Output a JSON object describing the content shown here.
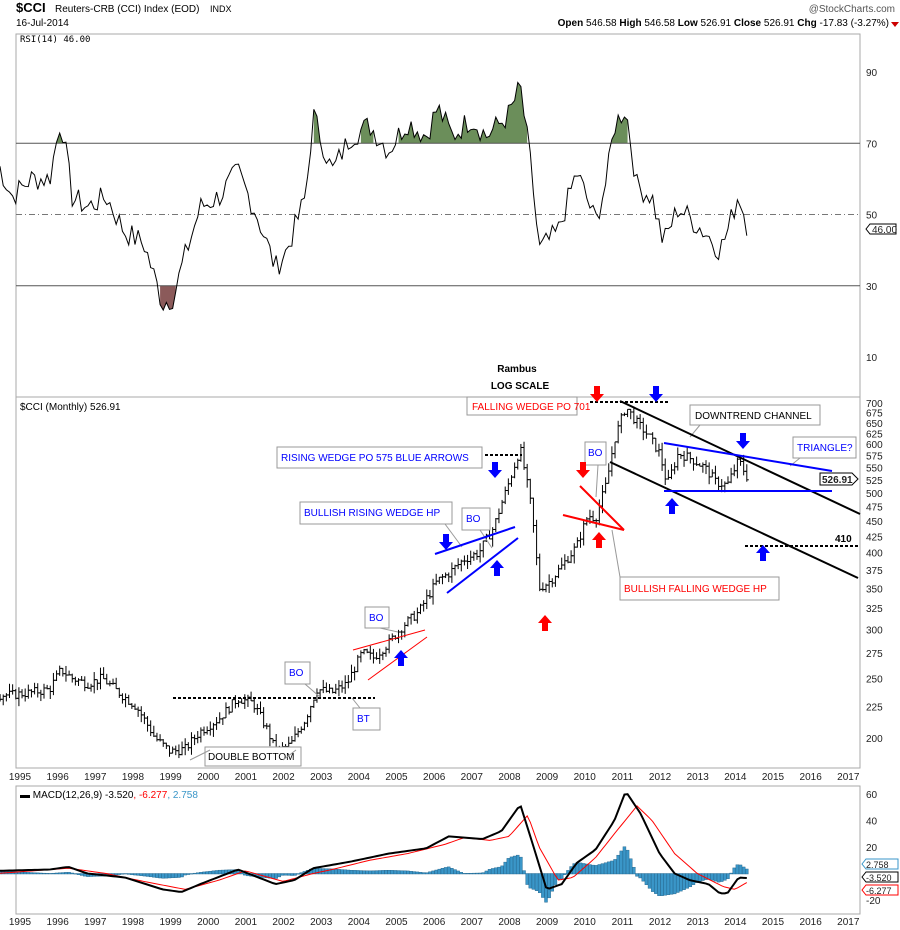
{
  "header": {
    "symbol": "$CCI",
    "name": "Reuters-CRB (CCI) Index (EOD)",
    "exchange": "INDX",
    "date": "16-Jul-2014",
    "copyright": "@StockCharts.com",
    "open_label": "Open",
    "open": "546.58",
    "high_label": "High",
    "high": "546.58",
    "low_label": "Low",
    "low": "526.91",
    "close_label": "Close",
    "close": "526.91",
    "chg_label": "Chg",
    "chg": "-17.83 (-3.27%)"
  },
  "colors": {
    "up_arrow_blue": "#0000ff",
    "red": "#ff0000",
    "rsi_over": "#6b8e5a",
    "rsi_under": "#8b5a5a",
    "hist": "#3a96c8",
    "signal": "#ff0000"
  },
  "chart_data": [
    {
      "type": "line",
      "title": "RSI(14) 46.00",
      "current_label": "46.00",
      "ylim": [
        0,
        100
      ],
      "ticks": [
        "90",
        "70",
        "50",
        "30",
        "10"
      ],
      "tick_values": [
        90,
        70,
        50,
        30,
        10
      ],
      "levels": [
        70,
        50,
        30
      ],
      "x": [
        1994.6,
        1995.0,
        1995.5,
        1996.0,
        1996.3,
        1996.6,
        1997.0,
        1997.5,
        1998.0,
        1998.5,
        1999.0,
        1999.3,
        1999.5,
        2000.0,
        2000.5,
        2001.0,
        2001.5,
        2002.0,
        2002.3,
        2002.8,
        2003.0,
        2003.5,
        2004.0,
        2004.5,
        2005.0,
        2005.5,
        2006.0,
        2006.3,
        2006.7,
        2007.2,
        2007.6,
        2008.2,
        2008.5,
        2008.8,
        2009.0,
        2009.5,
        2010.0,
        2010.5,
        2010.8,
        2011.0,
        2011.3,
        2011.6,
        2012.0,
        2012.3,
        2012.7,
        2013.1,
        2013.5,
        2013.8,
        2014.0,
        2014.3,
        2014.55
      ],
      "y": [
        65,
        55,
        60,
        60,
        77,
        55,
        52,
        55,
        45,
        42,
        25,
        27,
        35,
        52,
        55,
        62,
        50,
        35,
        40,
        55,
        78,
        62,
        72,
        75,
        68,
        76,
        72,
        80,
        72,
        77,
        72,
        78,
        86,
        62,
        40,
        45,
        62,
        48,
        60,
        75,
        80,
        58,
        55,
        42,
        52,
        48,
        44,
        40,
        45,
        56,
        46
      ]
    },
    {
      "type": "ohlc",
      "title": "$CCI (Monthly) 526.91",
      "scale": "log",
      "current_label": "526.91",
      "ylim": [
        180,
        710
      ],
      "ticks": [
        "700",
        "675",
        "650",
        "625",
        "600",
        "575",
        "550",
        "525",
        "500",
        "475",
        "450",
        "425",
        "400",
        "375",
        "350",
        "325",
        "300",
        "275",
        "250",
        "225",
        "200"
      ],
      "tick_values": [
        700,
        675,
        650,
        625,
        600,
        575,
        550,
        525,
        500,
        475,
        450,
        425,
        400,
        375,
        350,
        325,
        300,
        275,
        250,
        225,
        200
      ],
      "x": [
        1994.6,
        1995.0,
        1995.5,
        1996.0,
        1996.3,
        1996.6,
        1997.0,
        1997.4,
        1997.8,
        1998.3,
        1998.8,
        1999.2,
        1999.6,
        2000.0,
        2000.5,
        2001.0,
        2001.4,
        2001.8,
        2002.0,
        2002.4,
        2002.8,
        2003.1,
        2003.5,
        2003.9,
        2004.3,
        2004.6,
        2005.0,
        2005.4,
        2005.8,
        2006.3,
        2006.6,
        2007.0,
        2007.4,
        2007.8,
        2008.2,
        2008.5,
        2008.8,
        2009.0,
        2009.3,
        2009.6,
        2010.0,
        2010.3,
        2010.5,
        2010.8,
        2011.0,
        2011.3,
        2011.6,
        2011.9,
        2012.2,
        2012.4,
        2012.7,
        2013.0,
        2013.4,
        2013.7,
        2014.0,
        2014.3,
        2014.55
      ],
      "close": [
        235,
        235,
        237,
        240,
        258,
        250,
        245,
        250,
        238,
        225,
        200,
        190,
        192,
        205,
        215,
        232,
        228,
        205,
        190,
        195,
        215,
        240,
        237,
        245,
        275,
        270,
        285,
        305,
        320,
        360,
        370,
        390,
        400,
        440,
        520,
        590,
        470,
        350,
        360,
        380,
        410,
        460,
        455,
        520,
        610,
        690,
        650,
        620,
        580,
        515,
        580,
        570,
        550,
        520,
        515,
        565,
        527
      ],
      "annotations": {
        "rambus": "Rambus",
        "log_scale": "LOG SCALE",
        "falling_wedge_po": "FALLING WEDGE PO 701",
        "downtrend_channel": "DOWNTREND CHANNEL",
        "rising_wedge_po": "RISING WEDGE PO 575 BLUE ARROWS",
        "triangle": "TRIANGLE?",
        "bullish_rising_wedge": "BULLISH RISING WEDGE HP",
        "bo": "BO",
        "bt": "BT",
        "bullish_falling_wedge": "BULLISH FALLING WEDGE HP",
        "target_410": "410",
        "double_bottom": "DOUBLE BOTTOM"
      }
    },
    {
      "type": "line",
      "title": "MACD(12,26,9)",
      "macd_value": "-3.520",
      "signal_value": "-6.277",
      "hist_value": "2.758",
      "ylim": [
        -28,
        66
      ],
      "ticks": [
        "60",
        "40",
        "20",
        "-20"
      ],
      "tick_values": [
        60,
        40,
        20,
        -20
      ],
      "macd": {
        "x": [
          1994.6,
          1996,
          1996.5,
          1997,
          1998,
          1999,
          1999.5,
          2000,
          2001,
          2002,
          2002.5,
          2003,
          2004,
          2005,
          2006,
          2006.6,
          2007.5,
          2008.0,
          2008.5,
          2008.8,
          2009.2,
          2009.6,
          2010,
          2010.5,
          2011,
          2011.3,
          2011.7,
          2012.2,
          2012.6,
          2013,
          2013.5,
          2013.8,
          2014.0,
          2014.3,
          2014.55
        ],
        "y": [
          2,
          3,
          5,
          0,
          -3,
          -12,
          -14,
          -8,
          3,
          -8,
          -5,
          4,
          9,
          15,
          19,
          28,
          26,
          32,
          52,
          25,
          -12,
          -8,
          8,
          18,
          40,
          62,
          45,
          15,
          0,
          -5,
          -8,
          -15,
          -15,
          -3,
          -3.5
        ]
      },
      "signal": {
        "x": [
          1994.6,
          1996.5,
          1997.5,
          1998.5,
          1999.6,
          2000.5,
          2001.2,
          2002.2,
          2003,
          2003.5,
          2004.5,
          2005.5,
          2006.5,
          2007,
          2007.7,
          2008.2,
          2008.7,
          2009.0,
          2009.5,
          2009.9,
          2010.5,
          2011.0,
          2011.6,
          2012.0,
          2012.6,
          2013.2,
          2013.9,
          2014.2,
          2014.55
        ],
        "y": [
          0,
          4,
          0,
          -6,
          -12,
          -5,
          2,
          -6,
          0,
          3,
          10,
          15,
          22,
          27,
          25,
          28,
          44,
          20,
          -5,
          -3,
          12,
          30,
          51,
          40,
          15,
          0,
          -10,
          -12,
          -6.3
        ]
      }
    }
  ],
  "x_axis": {
    "years": [
      "1995",
      "1996",
      "1997",
      "1998",
      "1999",
      "2000",
      "2001",
      "2002",
      "2003",
      "2004",
      "2005",
      "2006",
      "2007",
      "2008",
      "2009",
      "2010",
      "2011",
      "2012",
      "2013",
      "2014",
      "2015",
      "2016",
      "2017"
    ]
  }
}
